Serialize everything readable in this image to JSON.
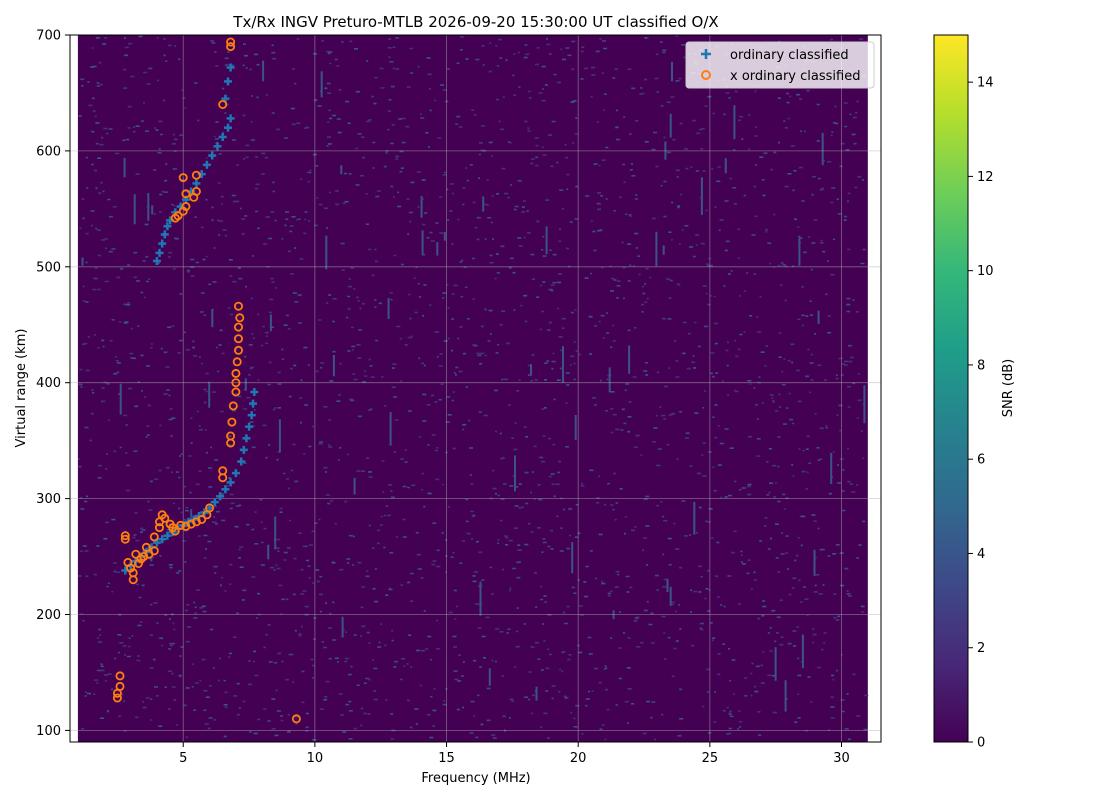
{
  "colors": {
    "background": "#440154",
    "ordinary": "#1f77b4",
    "x_ordinary": "#ff7f0e",
    "viridis": [
      "#440154",
      "#482878",
      "#3e4989",
      "#31688e",
      "#26828e",
      "#1f9e89",
      "#35b779",
      "#6ece58",
      "#b5de2b",
      "#fde725"
    ]
  },
  "chart_data": {
    "type": "scatter",
    "title": "Tx/Rx INGV Preturo-MTLB 2026-09-20 15:30:00  UT classified O/X",
    "xlabel": "Frequency (MHz)",
    "ylabel": "Virtual range (km)",
    "xlim": [
      0.7,
      31.5
    ],
    "ylim": [
      90,
      700
    ],
    "heatmap_x_range": [
      1.0,
      31.0
    ],
    "xticks": [
      5,
      10,
      15,
      20,
      25,
      30
    ],
    "yticks": [
      100,
      200,
      300,
      400,
      500,
      600,
      700
    ],
    "grid": true,
    "legend_position": "upper-right",
    "legend": [
      {
        "label": "ordinary classified",
        "marker": "plus",
        "color": "#1f77b4"
      },
      {
        "label": "x ordinary classified",
        "marker": "circle",
        "color": "#ff7f0e"
      }
    ],
    "colorbar": {
      "label": "SNR (dB)",
      "range": [
        0,
        15
      ],
      "ticks": [
        0,
        2,
        4,
        6,
        8,
        10,
        12,
        14
      ],
      "colormap": "viridis"
    },
    "series": [
      {
        "name": "ordinary classified",
        "marker": "plus",
        "points": [
          [
            2.8,
            238
          ],
          [
            3.0,
            242
          ],
          [
            3.2,
            246
          ],
          [
            3.4,
            250
          ],
          [
            3.6,
            254
          ],
          [
            3.8,
            258
          ],
          [
            4.0,
            262
          ],
          [
            4.2,
            265
          ],
          [
            4.4,
            268
          ],
          [
            4.6,
            271
          ],
          [
            4.8,
            274
          ],
          [
            5.0,
            277
          ],
          [
            5.2,
            280
          ],
          [
            5.4,
            282
          ],
          [
            5.6,
            285
          ],
          [
            5.8,
            288
          ],
          [
            6.0,
            292
          ],
          [
            6.2,
            297
          ],
          [
            6.4,
            302
          ],
          [
            6.6,
            308
          ],
          [
            6.8,
            314
          ],
          [
            7.0,
            322
          ],
          [
            7.2,
            332
          ],
          [
            7.3,
            342
          ],
          [
            7.4,
            352
          ],
          [
            7.5,
            362
          ],
          [
            7.6,
            372
          ],
          [
            7.65,
            382
          ],
          [
            7.7,
            392
          ],
          [
            4.0,
            505
          ],
          [
            4.1,
            512
          ],
          [
            4.2,
            520
          ],
          [
            4.3,
            528
          ],
          [
            4.4,
            535
          ],
          [
            4.5,
            540
          ],
          [
            4.7,
            547
          ],
          [
            4.9,
            552
          ],
          [
            5.1,
            558
          ],
          [
            5.3,
            565
          ],
          [
            5.5,
            572
          ],
          [
            5.7,
            580
          ],
          [
            5.9,
            588
          ],
          [
            6.1,
            596
          ],
          [
            6.3,
            604
          ],
          [
            6.5,
            612
          ],
          [
            6.7,
            620
          ],
          [
            6.8,
            628
          ],
          [
            6.6,
            645
          ],
          [
            6.7,
            660
          ],
          [
            6.8,
            672
          ]
        ]
      },
      {
        "name": "x ordinary classified",
        "marker": "circle",
        "points": [
          [
            2.8,
            265
          ],
          [
            2.8,
            268
          ],
          [
            2.9,
            245
          ],
          [
            3.0,
            240
          ],
          [
            3.1,
            236
          ],
          [
            3.1,
            230
          ],
          [
            3.2,
            252
          ],
          [
            3.3,
            244
          ],
          [
            3.4,
            248
          ],
          [
            3.5,
            250
          ],
          [
            3.6,
            258
          ],
          [
            3.7,
            252
          ],
          [
            3.9,
            255
          ],
          [
            3.9,
            267
          ],
          [
            4.1,
            275
          ],
          [
            4.1,
            280
          ],
          [
            4.2,
            286
          ],
          [
            4.3,
            283
          ],
          [
            4.5,
            278
          ],
          [
            4.6,
            275
          ],
          [
            4.7,
            272
          ],
          [
            4.9,
            277
          ],
          [
            5.1,
            276
          ],
          [
            5.3,
            278
          ],
          [
            5.5,
            280
          ],
          [
            5.7,
            282
          ],
          [
            5.9,
            286
          ],
          [
            6.0,
            292
          ],
          [
            6.5,
            318
          ],
          [
            6.5,
            324
          ],
          [
            6.8,
            348
          ],
          [
            6.8,
            354
          ],
          [
            6.85,
            366
          ],
          [
            6.9,
            380
          ],
          [
            7.0,
            392
          ],
          [
            7.0,
            400
          ],
          [
            7.0,
            408
          ],
          [
            7.05,
            418
          ],
          [
            7.1,
            428
          ],
          [
            7.1,
            438
          ],
          [
            7.1,
            448
          ],
          [
            7.15,
            456
          ],
          [
            7.1,
            466
          ],
          [
            4.7,
            542
          ],
          [
            4.8,
            544
          ],
          [
            5.0,
            548
          ],
          [
            5.1,
            552
          ],
          [
            5.1,
            563
          ],
          [
            5.4,
            560
          ],
          [
            5.5,
            565
          ],
          [
            5.0,
            577
          ],
          [
            5.5,
            579
          ],
          [
            6.5,
            640
          ],
          [
            6.8,
            690
          ],
          [
            6.8,
            694
          ],
          [
            2.5,
            128
          ],
          [
            2.5,
            132
          ],
          [
            2.6,
            138
          ],
          [
            2.6,
            147
          ],
          [
            9.3,
            110
          ]
        ]
      }
    ]
  }
}
